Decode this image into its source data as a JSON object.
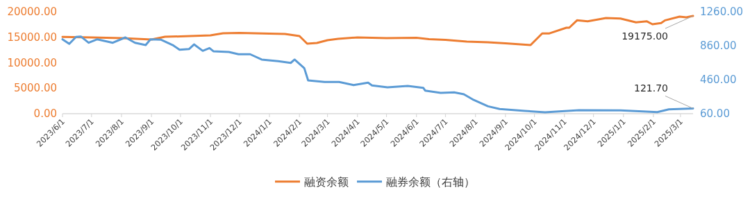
{
  "chart_data": {
    "type": "line",
    "xlim": [
      "2023-06-01",
      "2025-03-14"
    ],
    "xticks": [
      {
        "value": "2023-06-01",
        "label": "2023/6/1"
      },
      {
        "value": "2023-07-01",
        "label": "2023/7/1"
      },
      {
        "value": "2023-08-01",
        "label": "2023/8/1"
      },
      {
        "value": "2023-09-01",
        "label": "2023/9/1"
      },
      {
        "value": "2023-10-01",
        "label": "2023/10/1"
      },
      {
        "value": "2023-11-01",
        "label": "2023/11/1"
      },
      {
        "value": "2023-12-01",
        "label": "2023/12/1"
      },
      {
        "value": "2024-01-01",
        "label": "2024/1/1"
      },
      {
        "value": "2024-02-01",
        "label": "2024/2/1"
      },
      {
        "value": "2024-03-01",
        "label": "2024/3/1"
      },
      {
        "value": "2024-04-01",
        "label": "2024/4/1"
      },
      {
        "value": "2024-05-01",
        "label": "2024/5/1"
      },
      {
        "value": "2024-06-01",
        "label": "2024/6/1"
      },
      {
        "value": "2024-07-01",
        "label": "2024/7/1"
      },
      {
        "value": "2024-08-01",
        "label": "2024/8/1"
      },
      {
        "value": "2024-09-01",
        "label": "2024/9/1"
      },
      {
        "value": "2024-10-01",
        "label": "2024/10/1"
      },
      {
        "value": "2024-11-01",
        "label": "2024/11/1"
      },
      {
        "value": "2024-12-01",
        "label": "2024/12/1"
      },
      {
        "value": "2025-01-01",
        "label": "2025/1/1"
      },
      {
        "value": "2025-02-01",
        "label": "2025/2/1"
      },
      {
        "value": "2025-03-01",
        "label": "2025/3/1"
      }
    ],
    "ylim": [
      0,
      20000
    ],
    "yticks": [
      {
        "value": 0,
        "label": "0.00"
      },
      {
        "value": 5000,
        "label": "5000.00"
      },
      {
        "value": 10000,
        "label": "10000.00"
      },
      {
        "value": 15000,
        "label": "15000.00"
      },
      {
        "value": 20000,
        "label": "20000.00"
      }
    ],
    "y2lim": [
      60,
      1260
    ],
    "y2ticks": [
      {
        "value": 60,
        "label": "60.00"
      },
      {
        "value": 460,
        "label": "460.00"
      },
      {
        "value": 860,
        "label": "860.00"
      },
      {
        "value": 1260,
        "label": "1260.00"
      }
    ],
    "grid": false,
    "legend": "bottom",
    "series": [
      {
        "name": "融资余额",
        "color": "#ed7d31",
        "x": [
          "2023-06-01",
          "2023-07-01",
          "2023-08-01",
          "2023-09-01",
          "2023-09-15",
          "2023-10-01",
          "2023-11-01",
          "2023-11-14",
          "2023-12-01",
          "2024-01-01",
          "2024-01-17",
          "2024-02-01",
          "2024-02-09",
          "2024-02-19",
          "2024-03-01",
          "2024-03-12",
          "2024-04-01",
          "2024-05-01",
          "2024-06-01",
          "2024-06-14",
          "2024-07-01",
          "2024-07-23",
          "2024-08-14",
          "2024-09-01",
          "2024-09-27",
          "2024-10-09",
          "2024-10-16",
          "2024-11-03",
          "2024-11-06",
          "2024-11-14",
          "2024-11-25",
          "2024-12-14",
          "2024-12-29",
          "2025-01-14",
          "2025-01-25",
          "2025-01-31",
          "2025-02-09",
          "2025-02-13",
          "2025-02-28",
          "2025-03-07",
          "2025-03-14"
        ],
        "values": [
          15060,
          14950,
          14830,
          14560,
          15100,
          15170,
          15370,
          15780,
          15850,
          15710,
          15650,
          15240,
          13740,
          13880,
          14420,
          14690,
          14970,
          14830,
          14900,
          14630,
          14490,
          14150,
          14010,
          13810,
          13470,
          15740,
          15740,
          16870,
          16870,
          18320,
          18140,
          18770,
          18680,
          17920,
          18140,
          17550,
          17780,
          18320,
          19050,
          18910,
          19175
        ],
        "value_labels": [
          null,
          null,
          null,
          null,
          null,
          null,
          null,
          null,
          null,
          null,
          null,
          null,
          null,
          null,
          null,
          null,
          null,
          null,
          null,
          null,
          null,
          null,
          null,
          null,
          null,
          null,
          null,
          null,
          null,
          null,
          null,
          null,
          null,
          null,
          null,
          null,
          null,
          null,
          null,
          null,
          "19175.00"
        ]
      },
      {
        "name": "融券余额（右轴）",
        "color": "#5b9bd5",
        "axis": "y2",
        "x": [
          "2023-06-01",
          "2023-06-08",
          "2023-06-15",
          "2023-06-20",
          "2023-06-28",
          "2023-07-07",
          "2023-07-23",
          "2023-08-05",
          "2023-08-15",
          "2023-08-26",
          "2023-08-31",
          "2023-09-11",
          "2023-09-23",
          "2023-09-30",
          "2023-10-10",
          "2023-10-15",
          "2023-10-24",
          "2023-10-31",
          "2023-11-04",
          "2023-11-20",
          "2023-11-30",
          "2023-12-12",
          "2023-12-24",
          "2024-01-10",
          "2024-01-23",
          "2024-01-27",
          "2024-02-06",
          "2024-02-10",
          "2024-02-27",
          "2024-03-13",
          "2024-03-28",
          "2024-04-12",
          "2024-04-16",
          "2024-05-02",
          "2024-05-23",
          "2024-06-08",
          "2024-06-10",
          "2024-06-26",
          "2024-07-10",
          "2024-07-20",
          "2024-07-29",
          "2024-08-14",
          "2024-08-26",
          "2024-09-21",
          "2024-10-12",
          "2024-11-16",
          "2024-12-29",
          "2025-02-05",
          "2025-02-17",
          "2025-03-14"
        ],
        "values": [
          936,
          882,
          964,
          969,
          895,
          936,
          895,
          958,
          895,
          868,
          936,
          931,
          868,
          813,
          822,
          876,
          800,
          833,
          795,
          787,
          760,
          760,
          697,
          678,
          658,
          697,
          596,
          452,
          433,
          433,
          397,
          425,
          392,
          370,
          387,
          365,
          332,
          305,
          311,
          289,
          229,
          147,
          115,
          93,
          76,
          101,
          98,
          79,
          111,
          121.7
        ],
        "value_labels": [
          null,
          null,
          null,
          null,
          null,
          null,
          null,
          null,
          null,
          null,
          null,
          null,
          null,
          null,
          null,
          null,
          null,
          null,
          null,
          null,
          null,
          null,
          null,
          null,
          null,
          null,
          null,
          null,
          null,
          null,
          null,
          null,
          null,
          null,
          null,
          null,
          null,
          null,
          null,
          null,
          null,
          null,
          null,
          null,
          null,
          null,
          null,
          null,
          null,
          "121.70"
        ]
      }
    ]
  }
}
